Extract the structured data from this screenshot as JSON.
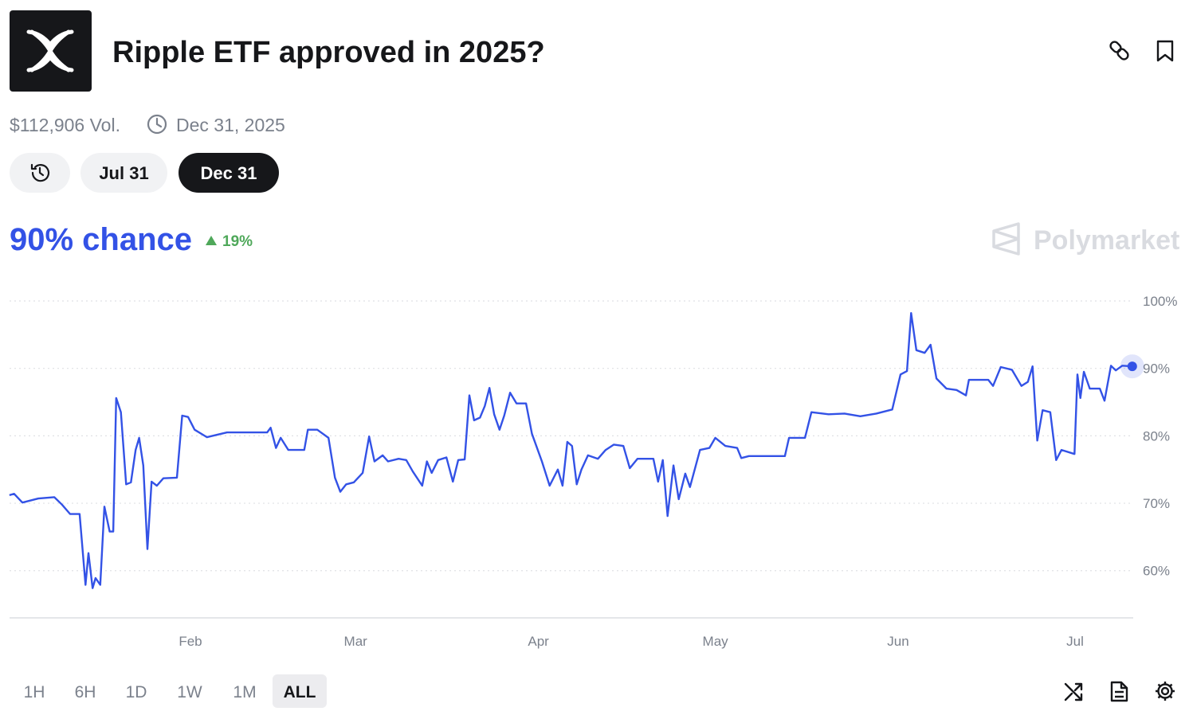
{
  "header": {
    "title": "Ripple ETF approved in 2025?",
    "volume": "$112,906 Vol.",
    "end_date": "Dec 31, 2025"
  },
  "date_tabs": [
    "Jul 31",
    "Dec 31"
  ],
  "active_date_tab": 1,
  "summary": {
    "chance": "90% chance",
    "change": "19%"
  },
  "watermark": "Polymarket",
  "chart_data": {
    "type": "line",
    "color": "#3352e6",
    "xlim": [
      0,
      191
    ],
    "xticks": [
      {
        "value": 31,
        "label": "Feb"
      },
      {
        "value": 59,
        "label": "Mar"
      },
      {
        "value": 90,
        "label": "Apr"
      },
      {
        "value": 120,
        "label": "May"
      },
      {
        "value": 151,
        "label": "Jun"
      },
      {
        "value": 181,
        "label": "Jul"
      }
    ],
    "ylim": [
      53,
      100
    ],
    "yticks": [
      {
        "value": 60,
        "label": "60%"
      },
      {
        "value": 70,
        "label": "70%"
      },
      {
        "value": 80,
        "label": "80%"
      },
      {
        "value": 90,
        "label": "90%"
      },
      {
        "value": 100,
        "label": "100%"
      }
    ],
    "grid": true,
    "x": [
      0.3,
      1.1,
      2.5,
      5.2,
      7.9,
      9.2,
      10.6,
      12.2,
      13.2,
      13.7,
      14.4,
      14.9,
      15.7,
      16.4,
      17.3,
      17.9,
      18.4,
      19.2,
      20.1,
      20.9,
      21.7,
      22.3,
      23.0,
      23.7,
      24.4,
      25.3,
      26.4,
      28.7,
      29.6,
      30.6,
      31.7,
      33.8,
      37.2,
      44.0,
      44.6,
      45.5,
      46.3,
      47.6,
      48.7,
      50.3,
      50.9,
      52.5,
      54.4,
      55.5,
      56.4,
      57.4,
      58.7,
      60.2,
      61.3,
      62.2,
      63.6,
      64.5,
      66.3,
      67.6,
      68.7,
      70.3,
      71.1,
      71.9,
      73.0,
      74.4,
      75.5,
      76.4,
      77.5,
      78.3,
      79.1,
      80.1,
      80.9,
      81.7,
      82.5,
      83.4,
      84.2,
      85.2,
      86.3,
      87.9,
      88.9,
      90.6,
      91.9,
      93.3,
      94.1,
      94.9,
      95.7,
      96.5,
      97.3,
      98.4,
      100.1,
      101.4,
      102.8,
      104.4,
      105.5,
      106.8,
      109.5,
      110.3,
      111.1,
      111.9,
      112.9,
      113.8,
      114.9,
      115.7,
      117.4,
      119.0,
      120.0,
      121.7,
      123.7,
      124.4,
      125.7,
      131.8,
      132.5,
      135.2,
      136.3,
      139.2,
      141.9,
      144.6,
      147.3,
      150.0,
      151.4,
      152.5,
      153.2,
      154.1,
      155.5,
      156.5,
      157.5,
      159.2,
      160.9,
      162.5,
      163.0,
      166.3,
      167.1,
      168.4,
      170.3,
      171.9,
      173.0,
      173.8,
      174.6,
      175.5,
      176.8,
      177.8,
      178.7,
      180.9,
      181.4,
      181.9,
      182.5,
      183.5,
      185.2,
      186.0,
      187.1,
      187.9,
      189.0,
      190.7
    ],
    "values": [
      71.2,
      71.4,
      70.1,
      70.7,
      70.9,
      69.8,
      68.4,
      68.4,
      57.9,
      62.6,
      57.4,
      58.9,
      57.9,
      69.5,
      65.8,
      65.8,
      85.6,
      83.5,
      72.8,
      73.1,
      77.9,
      79.7,
      75.6,
      63.2,
      73.2,
      72.6,
      73.7,
      73.8,
      83.0,
      82.8,
      80.9,
      79.8,
      80.5,
      80.5,
      81.2,
      78.2,
      79.7,
      77.9,
      77.9,
      77.9,
      80.9,
      80.9,
      79.7,
      73.8,
      71.7,
      72.8,
      73.1,
      74.5,
      79.9,
      76.2,
      77.1,
      76.2,
      76.6,
      76.4,
      74.7,
      72.6,
      76.2,
      74.5,
      76.4,
      76.8,
      73.2,
      76.4,
      76.5,
      86.0,
      82.3,
      82.7,
      84.4,
      87.1,
      83.2,
      80.9,
      83.0,
      86.4,
      84.8,
      84.8,
      80.3,
      76.2,
      72.6,
      75.0,
      72.6,
      79.1,
      78.5,
      72.8,
      75.0,
      77.1,
      76.6,
      77.9,
      78.7,
      78.5,
      75.2,
      76.6,
      76.6,
      73.2,
      76.4,
      68.1,
      75.6,
      70.6,
      74.4,
      72.4,
      77.9,
      78.2,
      79.7,
      78.5,
      78.2,
      76.7,
      77.0,
      77.0,
      79.7,
      79.7,
      83.5,
      83.2,
      83.3,
      82.9,
      83.3,
      83.9,
      89.1,
      89.6,
      98.2,
      92.7,
      92.3,
      93.5,
      88.5,
      87.0,
      86.8,
      86.0,
      88.3,
      88.3,
      87.4,
      90.2,
      89.8,
      87.4,
      88.0,
      90.3,
      79.3,
      83.8,
      83.5,
      76.4,
      77.9,
      77.3,
      89.1,
      85.6,
      89.5,
      87.0,
      87.0,
      85.2,
      90.4,
      89.7,
      90.4,
      90.3
    ]
  },
  "range_tabs": [
    "1H",
    "6H",
    "1D",
    "1W",
    "1M",
    "ALL"
  ],
  "active_range_tab": 5
}
